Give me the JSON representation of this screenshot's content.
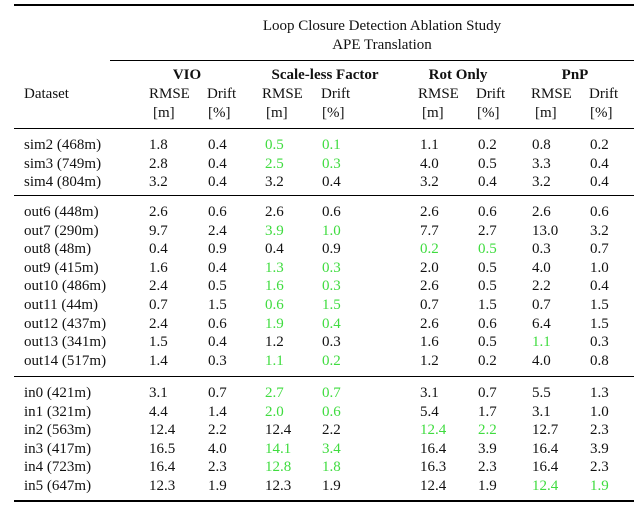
{
  "caption": {
    "line1": "Loop Closure Detection Ablation Study",
    "line2": "APE Translation"
  },
  "header": {
    "dataset_label": "Dataset",
    "methods": [
      {
        "name": "VIO",
        "rmse": "RMSE",
        "drift": "Drift",
        "rmse_unit": "[m]",
        "drift_unit": "[%]"
      },
      {
        "name": "Scale-less Factor",
        "rmse": "RMSE",
        "drift": "Drift",
        "rmse_unit": "[m]",
        "drift_unit": "[%]"
      },
      {
        "name": "Rot Only",
        "rmse": "RMSE",
        "drift": "Drift",
        "rmse_unit": "[m]",
        "drift_unit": "[%]"
      },
      {
        "name": "PnP",
        "rmse": "RMSE",
        "drift": "Drift",
        "rmse_unit": "[m]",
        "drift_unit": "[%]"
      }
    ]
  },
  "colors": {
    "highlight": "#3fdc3f",
    "text": "#111111",
    "rule": "#000000"
  },
  "groups": [
    {
      "rows": [
        {
          "dataset": "sim2 (468m)",
          "values": [
            "1.8",
            "0.4",
            "0.5",
            "0.1",
            "1.1",
            "0.2",
            "0.8",
            "0.2"
          ],
          "highlight": [
            2,
            3
          ]
        },
        {
          "dataset": "sim3 (749m)",
          "values": [
            "2.8",
            "0.4",
            "2.5",
            "0.3",
            "4.0",
            "0.5",
            "3.3",
            "0.4"
          ],
          "highlight": [
            2,
            3
          ]
        },
        {
          "dataset": "sim4 (804m)",
          "values": [
            "3.2",
            "0.4",
            "3.2",
            "0.4",
            "3.2",
            "0.4",
            "3.2",
            "0.4"
          ],
          "highlight": []
        }
      ]
    },
    {
      "rows": [
        {
          "dataset": "out6 (448m)",
          "values": [
            "2.6",
            "0.6",
            "2.6",
            "0.6",
            "2.6",
            "0.6",
            "2.6",
            "0.6"
          ],
          "highlight": []
        },
        {
          "dataset": "out7 (290m)",
          "values": [
            "9.7",
            "2.4",
            "3.9",
            "1.0",
            "7.7",
            "2.7",
            "13.0",
            "3.2"
          ],
          "highlight": [
            2,
            3
          ]
        },
        {
          "dataset": "out8 (48m)",
          "values": [
            "0.4",
            "0.9",
            "0.4",
            "0.9",
            "0.2",
            "0.5",
            "0.3",
            "0.7"
          ],
          "highlight": [
            4,
            5
          ]
        },
        {
          "dataset": "out9 (415m)",
          "values": [
            "1.6",
            "0.4",
            "1.3",
            "0.3",
            "2.0",
            "0.5",
            "4.0",
            "1.0"
          ],
          "highlight": [
            2,
            3
          ]
        },
        {
          "dataset": "out10 (486m)",
          "values": [
            "2.4",
            "0.5",
            "1.6",
            "0.3",
            "2.6",
            "0.5",
            "2.2",
            "0.4"
          ],
          "highlight": [
            2,
            3
          ]
        },
        {
          "dataset": "out11 (44m)",
          "values": [
            "0.7",
            "1.5",
            "0.6",
            "1.5",
            "0.7",
            "1.5",
            "0.7",
            "1.5"
          ],
          "highlight": [
            2,
            3
          ]
        },
        {
          "dataset": "out12 (437m)",
          "values": [
            "2.4",
            "0.6",
            "1.9",
            "0.4",
            "2.6",
            "0.6",
            "6.4",
            "1.5"
          ],
          "highlight": [
            2,
            3
          ]
        },
        {
          "dataset": "out13 (341m)",
          "values": [
            "1.5",
            "0.4",
            "1.2",
            "0.3",
            "1.6",
            "0.5",
            "1.1",
            "0.3"
          ],
          "highlight": [
            6
          ]
        },
        {
          "dataset": "out14 (517m)",
          "values": [
            "1.4",
            "0.3",
            "1.1",
            "0.2",
            "1.2",
            "0.2",
            "4.0",
            "0.8"
          ],
          "highlight": [
            2,
            3
          ]
        }
      ]
    },
    {
      "rows": [
        {
          "dataset": "in0 (421m)",
          "values": [
            "3.1",
            "0.7",
            "2.7",
            "0.7",
            "3.1",
            "0.7",
            "5.5",
            "1.3"
          ],
          "highlight": [
            2,
            3
          ]
        },
        {
          "dataset": "in1 (321m)",
          "values": [
            "4.4",
            "1.4",
            "2.0",
            "0.6",
            "5.4",
            "1.7",
            "3.1",
            "1.0"
          ],
          "highlight": [
            2,
            3
          ]
        },
        {
          "dataset": "in2 (563m)",
          "values": [
            "12.4",
            "2.2",
            "12.4",
            "2.2",
            "12.4",
            "2.2",
            "12.7",
            "2.3"
          ],
          "highlight": [
            4,
            5
          ]
        },
        {
          "dataset": "in3 (417m)",
          "values": [
            "16.5",
            "4.0",
            "14.1",
            "3.4",
            "16.4",
            "3.9",
            "16.4",
            "3.9"
          ],
          "highlight": [
            2,
            3
          ]
        },
        {
          "dataset": "in4 (723m)",
          "values": [
            "16.4",
            "2.3",
            "12.8",
            "1.8",
            "16.3",
            "2.3",
            "16.4",
            "2.3"
          ],
          "highlight": [
            2,
            3
          ]
        },
        {
          "dataset": "in5 (647m)",
          "values": [
            "12.3",
            "1.9",
            "12.3",
            "1.9",
            "12.4",
            "1.9",
            "12.4",
            "1.9"
          ],
          "highlight": [
            6,
            7
          ]
        }
      ]
    }
  ]
}
